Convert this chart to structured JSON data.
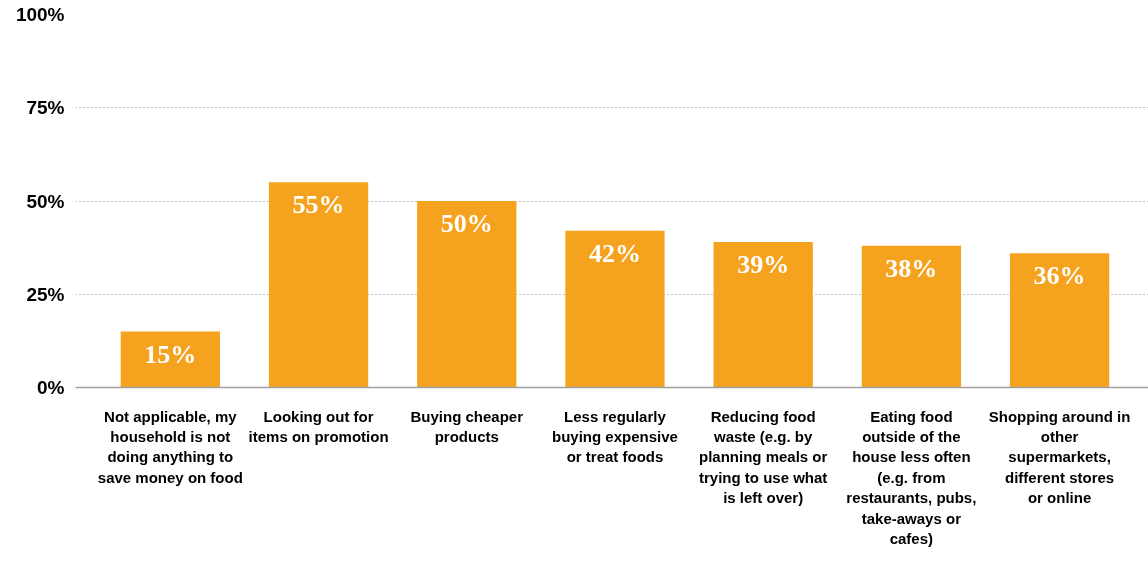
{
  "chart_data": {
    "type": "bar",
    "categories": [
      "Not applicable, my household is not doing anything to save money on food",
      "Looking out for items on promotion",
      "Buying cheaper products",
      "Less regularly buying expensive or treat foods",
      "Reducing food waste (e.g. by planning meals or trying to use what is left over)",
      "Eating food outside of the house less often (e.g. from restaurants, pubs, take-aways or cafes)",
      "Shopping around in other supermarkets, different stores or online"
    ],
    "values": [
      15,
      55,
      50,
      42,
      39,
      38,
      36
    ],
    "value_labels": [
      "15%",
      "55%",
      "50%",
      "42%",
      "39%",
      "38%",
      "36%"
    ],
    "color": "#f5a31f",
    "ylim": [
      0,
      100
    ],
    "yticks": [
      {
        "value": 0,
        "label": "0%"
      },
      {
        "value": 25,
        "label": "25%"
      },
      {
        "value": 50,
        "label": "50%"
      },
      {
        "value": 75,
        "label": "75%"
      },
      {
        "value": 100,
        "label": "100%"
      }
    ],
    "grid": "y"
  }
}
